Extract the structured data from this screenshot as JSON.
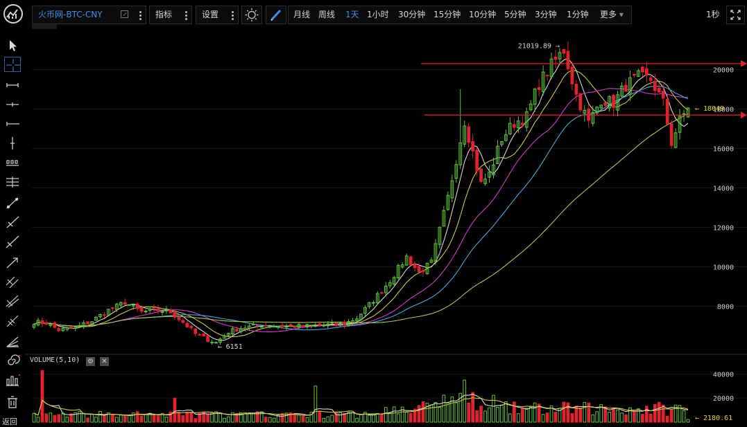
{
  "symbol": "火币网-BTC-CNY",
  "toolbar_top": {
    "indicators_label": "指标",
    "settings_label": "设置",
    "periods": [
      "月线",
      "周线",
      "1天",
      "1小时",
      "30分钟",
      "15分钟",
      "10分钟",
      "5分钟",
      "3分钟",
      "1分钟",
      "更多"
    ],
    "active_period": "1天",
    "more_arrow": "▾",
    "speed_label": "1秒"
  },
  "sidebar": {
    "back_label": "返回"
  },
  "colors": {
    "up": "#5fc43a",
    "down": "#e0232c",
    "ma5": "#d9d9d9",
    "ma10": "#d4c64a",
    "ma20": "#d43ad0",
    "ma30": "#4aa5e0",
    "ma60": "#a8c85a",
    "hline": "#e0232c",
    "grid": "#151515",
    "axis_text": "#cfcfcf"
  },
  "chart_data": {
    "type": "candlestick",
    "price_axis": {
      "ticks": [
        8000,
        10000,
        12000,
        14000,
        16000,
        18000,
        20000
      ],
      "ylim": [
        5700,
        21700
      ]
    },
    "volume_axis": {
      "ticks": [
        20000,
        40000
      ],
      "ylim": [
        0,
        46000
      ]
    },
    "volume_label": "VOLUME(5,10)",
    "annotations": {
      "high": {
        "label": "21019.89",
        "value": 21019.89
      },
      "low": {
        "label": "6151",
        "value": 6151
      },
      "last_price": {
        "label": "18049",
        "value": 18049
      },
      "last_volume": {
        "label": "2180.61",
        "value": 2180.61
      }
    },
    "horizontal_lines": [
      20300,
      17690
    ],
    "anchors": [
      [
        0,
        7200
      ],
      [
        3,
        7150
      ],
      [
        6,
        6800
      ],
      [
        10,
        6900
      ],
      [
        14,
        7250
      ],
      [
        18,
        7800
      ],
      [
        22,
        8200
      ],
      [
        26,
        7700
      ],
      [
        30,
        7800
      ],
      [
        33,
        7700
      ],
      [
        36,
        7200
      ],
      [
        39,
        6600
      ],
      [
        42,
        6300
      ],
      [
        44,
        6151
      ],
      [
        47,
        6700
      ],
      [
        50,
        6900
      ],
      [
        55,
        7050
      ],
      [
        60,
        7000
      ],
      [
        65,
        6980
      ],
      [
        70,
        7050
      ],
      [
        75,
        7100
      ],
      [
        78,
        7400
      ],
      [
        82,
        8300
      ],
      [
        86,
        9300
      ],
      [
        90,
        10500
      ],
      [
        93,
        9700
      ],
      [
        96,
        10200
      ],
      [
        100,
        13500
      ],
      [
        104,
        17400
      ],
      [
        106,
        15800
      ],
      [
        108,
        14200
      ],
      [
        110,
        14700
      ],
      [
        113,
        16500
      ],
      [
        116,
        17300
      ],
      [
        119,
        17600
      ],
      [
        122,
        19300
      ],
      [
        125,
        20200
      ],
      [
        128,
        21000
      ],
      [
        131,
        18700
      ],
      [
        134,
        17300
      ],
      [
        137,
        18500
      ],
      [
        140,
        18300
      ],
      [
        143,
        19200
      ],
      [
        146,
        19600
      ],
      [
        149,
        19500
      ],
      [
        152,
        18300
      ],
      [
        154,
        16300
      ],
      [
        156,
        17400
      ],
      [
        158,
        18049
      ]
    ]
  }
}
